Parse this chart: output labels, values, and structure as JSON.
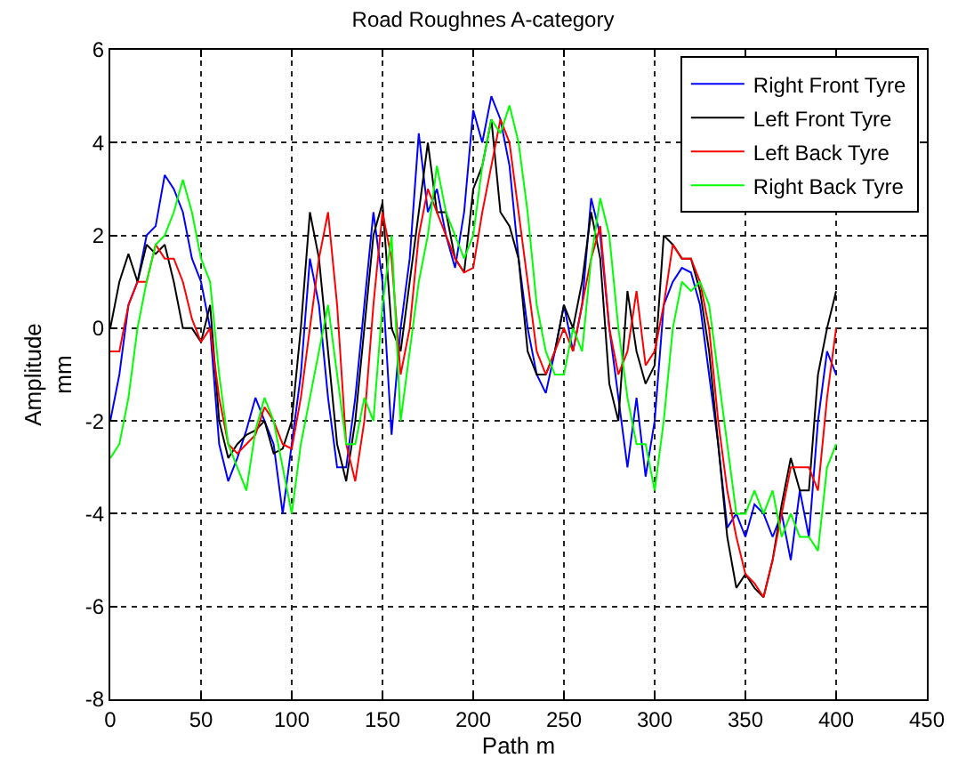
{
  "chart_data": {
    "type": "line",
    "title": "Road Roughnes A-category",
    "xlabel": "Path m",
    "ylabel": "Amplitude\nmm",
    "x": [
      0,
      5,
      10,
      15,
      20,
      25,
      30,
      35,
      40,
      45,
      50,
      55,
      60,
      65,
      70,
      75,
      80,
      85,
      90,
      95,
      100,
      105,
      110,
      115,
      120,
      125,
      130,
      135,
      140,
      145,
      150,
      155,
      160,
      165,
      170,
      175,
      180,
      185,
      190,
      195,
      200,
      205,
      210,
      215,
      220,
      225,
      230,
      235,
      240,
      245,
      250,
      255,
      260,
      265,
      270,
      275,
      280,
      285,
      290,
      295,
      300,
      305,
      310,
      315,
      320,
      325,
      330,
      335,
      340,
      345,
      350,
      355,
      360,
      365,
      370,
      375,
      380,
      385,
      390,
      395,
      400
    ],
    "series": [
      {
        "name": "Right Front Tyre",
        "color": "#0000ff",
        "values": [
          -2.0,
          -1.0,
          0.5,
          1.0,
          2.0,
          2.2,
          3.3,
          3.0,
          2.5,
          1.5,
          1.0,
          0.0,
          -2.5,
          -3.3,
          -2.8,
          -2.2,
          -1.5,
          -2.0,
          -2.5,
          -4.0,
          -2.5,
          -1.0,
          1.5,
          0.5,
          -1.5,
          -3.0,
          -3.0,
          -1.5,
          0.5,
          2.5,
          1.0,
          -2.3,
          0.0,
          1.5,
          4.2,
          2.5,
          3.0,
          2.0,
          1.3,
          2.5,
          4.7,
          4.0,
          5.0,
          4.5,
          3.5,
          1.5,
          0.0,
          -1.0,
          -1.4,
          -0.5,
          0.5,
          -0.5,
          0.5,
          2.8,
          2.0,
          0.0,
          -1.5,
          -3.0,
          -1.5,
          -3.2,
          -2.0,
          0.5,
          1.0,
          1.3,
          1.2,
          0.5,
          -1.0,
          -2.5,
          -4.3,
          -4.0,
          -4.5,
          -3.8,
          -4.0,
          -4.5,
          -4.0,
          -5.0,
          -3.5,
          -4.5,
          -2.0,
          -0.5,
          -1.0
        ]
      },
      {
        "name": "Left Front Tyre",
        "color": "#000000",
        "values": [
          0.0,
          1.0,
          1.6,
          1.0,
          1.8,
          1.6,
          1.8,
          1.0,
          0.0,
          0.0,
          -0.3,
          0.5,
          -2.0,
          -2.8,
          -2.5,
          -2.3,
          -2.2,
          -2.0,
          -2.7,
          -2.6,
          -2.0,
          0.0,
          2.5,
          1.5,
          -0.5,
          -2.5,
          -3.3,
          -2.0,
          0.0,
          2.0,
          2.7,
          0.0,
          -0.5,
          1.0,
          2.5,
          4.0,
          2.5,
          2.5,
          1.5,
          1.2,
          3.0,
          3.5,
          4.5,
          2.5,
          2.2,
          1.5,
          -0.5,
          -1.0,
          -1.0,
          -0.5,
          0.5,
          0.0,
          1.0,
          2.5,
          1.5,
          -1.2,
          -2.0,
          0.8,
          -0.5,
          -1.2,
          -0.8,
          2.0,
          1.8,
          1.5,
          1.5,
          0.8,
          -0.5,
          -2.5,
          -4.5,
          -5.6,
          -5.3,
          -5.6,
          -5.8,
          -5.0,
          -3.8,
          -2.8,
          -3.5,
          -3.5,
          -1.0,
          0.0,
          0.8
        ]
      },
      {
        "name": "Left Back Tyre",
        "color": "#ff0000",
        "values": [
          -0.5,
          -0.5,
          0.5,
          1.0,
          1.0,
          1.8,
          1.5,
          1.5,
          1.0,
          0.2,
          -0.3,
          0.0,
          -1.5,
          -2.5,
          -2.7,
          -2.5,
          -2.3,
          -1.7,
          -2.0,
          -2.5,
          -2.6,
          -1.5,
          0.0,
          1.5,
          2.5,
          0.5,
          -2.5,
          -3.3,
          -2.0,
          0.5,
          2.5,
          1.5,
          -1.0,
          0.0,
          2.0,
          3.0,
          2.5,
          2.0,
          1.5,
          1.2,
          1.3,
          2.5,
          3.5,
          4.5,
          4.0,
          2.5,
          1.0,
          -0.5,
          -1.0,
          -0.5,
          0.0,
          -0.5,
          0.5,
          1.5,
          2.2,
          0.0,
          -1.0,
          -0.5,
          0.8,
          -0.8,
          -0.5,
          0.5,
          1.8,
          1.5,
          1.5,
          1.0,
          0.0,
          -2.0,
          -3.5,
          -4.5,
          -5.3,
          -5.5,
          -5.8,
          -5.0,
          -4.0,
          -3.0,
          -3.0,
          -3.0,
          -3.5,
          -1.5,
          0.0
        ]
      },
      {
        "name": "Right Back Tyre",
        "color": "#00ff00",
        "values": [
          -2.8,
          -2.5,
          -1.5,
          0.0,
          1.0,
          1.8,
          2.0,
          2.5,
          3.2,
          2.5,
          1.5,
          1.0,
          -1.0,
          -2.5,
          -3.0,
          -3.5,
          -2.2,
          -1.5,
          -2.0,
          -3.0,
          -4.0,
          -2.5,
          -1.5,
          -0.5,
          0.5,
          -1.0,
          -2.5,
          -2.5,
          -1.5,
          -2.0,
          0.5,
          2.0,
          -2.0,
          -0.5,
          1.0,
          2.0,
          3.5,
          2.5,
          2.0,
          1.5,
          2.0,
          3.5,
          4.5,
          4.2,
          4.8,
          4.0,
          2.5,
          0.5,
          -0.5,
          -1.0,
          -1.0,
          0.0,
          -0.5,
          1.5,
          2.8,
          2.0,
          0.0,
          -1.5,
          -2.5,
          -2.5,
          -3.5,
          -2.0,
          0.0,
          1.0,
          0.8,
          1.0,
          0.5,
          -1.0,
          -2.5,
          -4.0,
          -4.0,
          -3.5,
          -4.0,
          -3.5,
          -4.5,
          -4.0,
          -4.5,
          -4.5,
          -4.8,
          -3.0,
          -2.5
        ]
      }
    ],
    "xlim": [
      0,
      450
    ],
    "xticks": [
      0,
      50,
      100,
      150,
      200,
      250,
      300,
      350,
      400,
      450
    ],
    "ylim": [
      -8,
      6
    ],
    "yticks": [
      -8,
      -6,
      -4,
      -2,
      0,
      2,
      4,
      6
    ],
    "grid": true,
    "legend": "top right",
    "marker": "none",
    "line_style": "solid"
  }
}
